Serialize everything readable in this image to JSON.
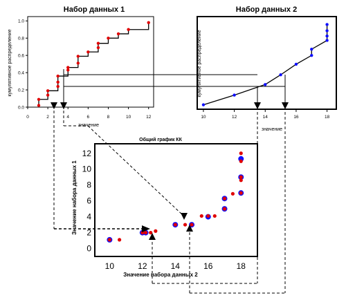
{
  "chart_data": [
    {
      "type": "line",
      "title": "Набор данных 1",
      "xlabel": "значение",
      "ylabel": "кумулятивное распределение",
      "xticks": [
        "0",
        "2",
        "4",
        "6",
        "8",
        "10",
        "12"
      ],
      "yticks": [
        "0.0",
        "0.2",
        "0.4",
        "0.6",
        "0.8",
        "1.0"
      ],
      "xlim": [
        0,
        12.5
      ],
      "ylim": [
        0,
        1.05
      ],
      "point_color": "#e00000",
      "points": [
        {
          "x": 1.1,
          "y": 0.02
        },
        {
          "x": 1.1,
          "y": 0.09
        },
        {
          "x": 2.0,
          "y": 0.14
        },
        {
          "x": 2.0,
          "y": 0.19
        },
        {
          "x": 3.0,
          "y": 0.24
        },
        {
          "x": 3.0,
          "y": 0.29
        },
        {
          "x": 3.0,
          "y": 0.36
        },
        {
          "x": 4.0,
          "y": 0.43
        },
        {
          "x": 4.0,
          "y": 0.46
        },
        {
          "x": 5.0,
          "y": 0.51
        },
        {
          "x": 5.0,
          "y": 0.59
        },
        {
          "x": 6.0,
          "y": 0.64
        },
        {
          "x": 7.0,
          "y": 0.69
        },
        {
          "x": 7.0,
          "y": 0.74
        },
        {
          "x": 8.0,
          "y": 0.8
        },
        {
          "x": 9.0,
          "y": 0.85
        },
        {
          "x": 10.0,
          "y": 0.9
        },
        {
          "x": 12.0,
          "y": 0.98
        }
      ]
    },
    {
      "type": "line",
      "title": "Набор данных 2",
      "xlabel": "значение",
      "ylabel": "кумулятивное распределение",
      "xticks": [
        "10",
        "12",
        "14",
        "16",
        "18"
      ],
      "xlim": [
        9.6,
        18.6
      ],
      "ylim": [
        0,
        1.05
      ],
      "point_color": "#1010ff",
      "points": [
        {
          "x": 10.0,
          "y": 0.05
        },
        {
          "x": 12.0,
          "y": 0.16
        },
        {
          "x": 14.0,
          "y": 0.28
        },
        {
          "x": 15.0,
          "y": 0.39
        },
        {
          "x": 16.0,
          "y": 0.51
        },
        {
          "x": 17.0,
          "y": 0.61
        },
        {
          "x": 17.0,
          "y": 0.68
        },
        {
          "x": 18.0,
          "y": 0.78
        },
        {
          "x": 18.0,
          "y": 0.83
        },
        {
          "x": 18.0,
          "y": 0.89
        },
        {
          "x": 18.0,
          "y": 0.96
        }
      ]
    },
    {
      "type": "scatter",
      "title": "Общий график КК",
      "xlabel": "Значение набора данных 2",
      "ylabel": "Значение набора данных 1",
      "xticks": [
        "10",
        "12",
        "14",
        "16",
        "18"
      ],
      "yticks": [
        "0",
        "2",
        "4",
        "6",
        "8",
        "10",
        "12"
      ],
      "xlim": [
        9.1,
        19.0
      ],
      "ylim": [
        -1,
        13.2
      ],
      "series": [
        {
          "color": "#1010ff",
          "points": [
            {
              "x": 10.0,
              "y": 1.1
            },
            {
              "x": 12.0,
              "y": 2.0
            },
            {
              "x": 12.2,
              "y": 2.0
            },
            {
              "x": 14.0,
              "y": 3.0
            },
            {
              "x": 15.0,
              "y": 3.0
            },
            {
              "x": 16.0,
              "y": 4.0
            },
            {
              "x": 17.0,
              "y": 5.0
            },
            {
              "x": 17.0,
              "y": 6.3
            },
            {
              "x": 18.0,
              "y": 7.0
            },
            {
              "x": 18.0,
              "y": 9.0
            },
            {
              "x": 18.0,
              "y": 11.3
            }
          ]
        },
        {
          "color": "#e00000",
          "points": [
            {
              "x": 10.0,
              "y": 1.1
            },
            {
              "x": 10.6,
              "y": 1.1
            },
            {
              "x": 12.0,
              "y": 2.0
            },
            {
              "x": 12.2,
              "y": 2.0
            },
            {
              "x": 12.5,
              "y": 2.0
            },
            {
              "x": 12.8,
              "y": 2.2
            },
            {
              "x": 14.0,
              "y": 3.0
            },
            {
              "x": 14.6,
              "y": 3.0
            },
            {
              "x": 15.0,
              "y": 3.0
            },
            {
              "x": 15.6,
              "y": 4.1
            },
            {
              "x": 16.0,
              "y": 4.1
            },
            {
              "x": 16.4,
              "y": 4.1
            },
            {
              "x": 17.0,
              "y": 5.0
            },
            {
              "x": 17.0,
              "y": 6.3
            },
            {
              "x": 17.5,
              "y": 6.9
            },
            {
              "x": 18.0,
              "y": 7.0
            },
            {
              "x": 18.0,
              "y": 8.6
            },
            {
              "x": 18.0,
              "y": 9.0
            },
            {
              "x": 18.0,
              "y": 11.0
            },
            {
              "x": 18.0,
              "y": 12.0
            }
          ]
        }
      ]
    }
  ]
}
